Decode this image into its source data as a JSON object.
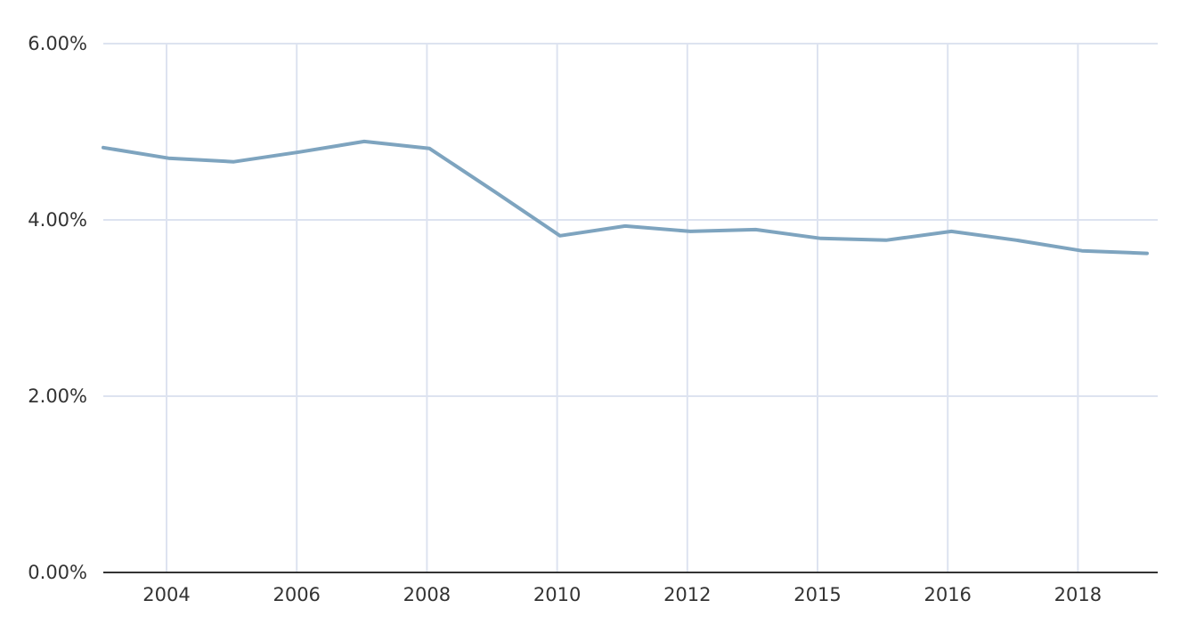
{
  "chart_data": {
    "type": "line",
    "title": "",
    "xlabel": "",
    "ylabel": "",
    "x_tick_labels": [
      "2004",
      "2006",
      "2008",
      "2010",
      "2012",
      "2015",
      "2016",
      "2018"
    ],
    "y_tick_labels": [
      "0.00%",
      "2.00%",
      "4.00%",
      "6.00%"
    ],
    "y_ticks": [
      0,
      2,
      4,
      6
    ],
    "ylim": [
      0,
      6
    ],
    "grid": true,
    "legend": "none",
    "series": [
      {
        "color": "#7ea4bf",
        "values": [
          4.82,
          4.7,
          4.66,
          4.77,
          4.89,
          4.81,
          4.32,
          3.82,
          3.93,
          3.87,
          3.89,
          3.79,
          3.77,
          3.87,
          3.77,
          3.65,
          3.62
        ]
      }
    ],
    "colors": {
      "grid": "#dde3f0",
      "axis": "#333333",
      "text": "#333333"
    }
  }
}
